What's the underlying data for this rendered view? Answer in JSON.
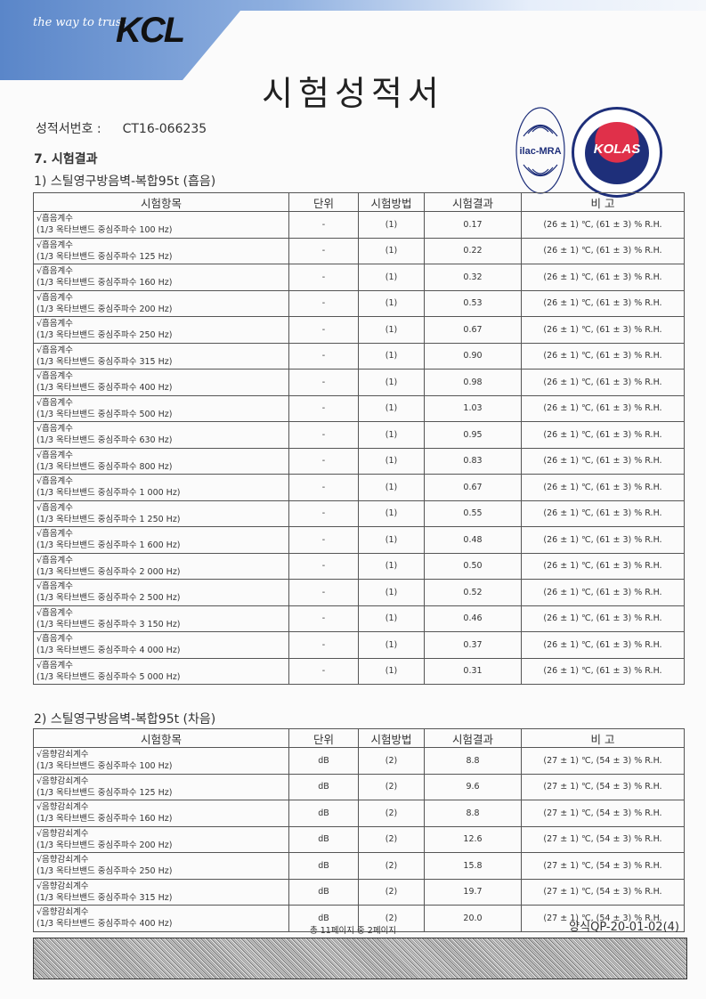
{
  "header": {
    "tagline": "the way to trust",
    "logo": "KCL",
    "title": "시험성적서",
    "accreditation_logos": [
      "ilac-MRA",
      "KOLAS"
    ]
  },
  "report": {
    "label": "성적서번호 :",
    "number": "CT16-066235"
  },
  "section": "7. 시험결과",
  "columns": [
    "시험항목",
    "단위",
    "시험방법",
    "시험결과",
    "비  고"
  ],
  "table1": {
    "title": "1) 스틸영구방음벽-복합95t (흡음)",
    "rows": [
      {
        "item": "√흡음계수",
        "band": "(1/3 옥타브밴드 중심주파수 100 Hz)",
        "unit": "-",
        "method": "(1)",
        "result": "0.17",
        "note": "(26 ± 1) ℃, (61 ± 3) % R.H."
      },
      {
        "item": "√흡음계수",
        "band": "(1/3 옥타브밴드 중심주파수 125 Hz)",
        "unit": "-",
        "method": "(1)",
        "result": "0.22",
        "note": "(26 ± 1) ℃, (61 ± 3) % R.H."
      },
      {
        "item": "√흡음계수",
        "band": "(1/3 옥타브밴드 중심주파수 160 Hz)",
        "unit": "-",
        "method": "(1)",
        "result": "0.32",
        "note": "(26 ± 1) ℃, (61 ± 3) % R.H."
      },
      {
        "item": "√흡음계수",
        "band": "(1/3 옥타브밴드 중심주파수 200 Hz)",
        "unit": "-",
        "method": "(1)",
        "result": "0.53",
        "note": "(26 ± 1) ℃, (61 ± 3) % R.H."
      },
      {
        "item": "√흡음계수",
        "band": "(1/3 옥타브밴드 중심주파수 250 Hz)",
        "unit": "-",
        "method": "(1)",
        "result": "0.67",
        "note": "(26 ± 1) ℃, (61 ± 3) % R.H."
      },
      {
        "item": "√흡음계수",
        "band": "(1/3 옥타브밴드 중심주파수 315 Hz)",
        "unit": "-",
        "method": "(1)",
        "result": "0.90",
        "note": "(26 ± 1) ℃, (61 ± 3) % R.H."
      },
      {
        "item": "√흡음계수",
        "band": "(1/3 옥타브밴드 중심주파수 400 Hz)",
        "unit": "-",
        "method": "(1)",
        "result": "0.98",
        "note": "(26 ± 1) ℃, (61 ± 3) % R.H."
      },
      {
        "item": "√흡음계수",
        "band": "(1/3 옥타브밴드 중심주파수 500 Hz)",
        "unit": "-",
        "method": "(1)",
        "result": "1.03",
        "note": "(26 ± 1) ℃, (61 ± 3) % R.H."
      },
      {
        "item": "√흡음계수",
        "band": "(1/3 옥타브밴드 중심주파수 630 Hz)",
        "unit": "-",
        "method": "(1)",
        "result": "0.95",
        "note": "(26 ± 1) ℃, (61 ± 3) % R.H."
      },
      {
        "item": "√흡음계수",
        "band": "(1/3 옥타브밴드 중심주파수 800 Hz)",
        "unit": "-",
        "method": "(1)",
        "result": "0.83",
        "note": "(26 ± 1) ℃, (61 ± 3) % R.H."
      },
      {
        "item": "√흡음계수",
        "band": "(1/3 옥타브밴드 중심주파수 1 000 Hz)",
        "unit": "-",
        "method": "(1)",
        "result": "0.67",
        "note": "(26 ± 1) ℃, (61 ± 3) % R.H."
      },
      {
        "item": "√흡음계수",
        "band": "(1/3 옥타브밴드 중심주파수 1 250 Hz)",
        "unit": "-",
        "method": "(1)",
        "result": "0.55",
        "note": "(26 ± 1) ℃, (61 ± 3) % R.H."
      },
      {
        "item": "√흡음계수",
        "band": "(1/3 옥타브밴드 중심주파수 1 600 Hz)",
        "unit": "-",
        "method": "(1)",
        "result": "0.48",
        "note": "(26 ± 1) ℃, (61 ± 3) % R.H."
      },
      {
        "item": "√흡음계수",
        "band": "(1/3 옥타브밴드 중심주파수 2 000 Hz)",
        "unit": "-",
        "method": "(1)",
        "result": "0.50",
        "note": "(26 ± 1) ℃, (61 ± 3) % R.H."
      },
      {
        "item": "√흡음계수",
        "band": "(1/3 옥타브밴드 중심주파수 2 500 Hz)",
        "unit": "-",
        "method": "(1)",
        "result": "0.52",
        "note": "(26 ± 1) ℃, (61 ± 3) % R.H."
      },
      {
        "item": "√흡음계수",
        "band": "(1/3 옥타브밴드 중심주파수 3 150 Hz)",
        "unit": "-",
        "method": "(1)",
        "result": "0.46",
        "note": "(26 ± 1) ℃, (61 ± 3) % R.H."
      },
      {
        "item": "√흡음계수",
        "band": "(1/3 옥타브밴드 중심주파수 4 000 Hz)",
        "unit": "-",
        "method": "(1)",
        "result": "0.37",
        "note": "(26 ± 1) ℃, (61 ± 3) % R.H."
      },
      {
        "item": "√흡음계수",
        "band": "(1/3 옥타브밴드 중심주파수 5 000 Hz)",
        "unit": "-",
        "method": "(1)",
        "result": "0.31",
        "note": "(26 ± 1) ℃, (61 ± 3) % R.H."
      }
    ]
  },
  "table2": {
    "title": "2) 스틸영구방음벽-복합95t (차음)",
    "rows": [
      {
        "item": "√음향감쇠계수",
        "band": "(1/3 옥타브밴드 중심주파수 100 Hz)",
        "unit": "dB",
        "method": "(2)",
        "result": "8.8",
        "note": "(27 ± 1) ℃, (54 ± 3) % R.H."
      },
      {
        "item": "√음향감쇠계수",
        "band": "(1/3 옥타브밴드 중심주파수 125 Hz)",
        "unit": "dB",
        "method": "(2)",
        "result": "9.6",
        "note": "(27 ± 1) ℃, (54 ± 3) % R.H."
      },
      {
        "item": "√음향감쇠계수",
        "band": "(1/3 옥타브밴드 중심주파수 160 Hz)",
        "unit": "dB",
        "method": "(2)",
        "result": "8.8",
        "note": "(27 ± 1) ℃, (54 ± 3) % R.H."
      },
      {
        "item": "√음향감쇠계수",
        "band": "(1/3 옥타브밴드 중심주파수 200 Hz)",
        "unit": "dB",
        "method": "(2)",
        "result": "12.6",
        "note": "(27 ± 1) ℃, (54 ± 3) % R.H."
      },
      {
        "item": "√음향감쇠계수",
        "band": "(1/3 옥타브밴드 중심주파수 250 Hz)",
        "unit": "dB",
        "method": "(2)",
        "result": "15.8",
        "note": "(27 ± 1) ℃, (54 ± 3) % R.H."
      },
      {
        "item": "√음향감쇠계수",
        "band": "(1/3 옥타브밴드 중심주파수 315 Hz)",
        "unit": "dB",
        "method": "(2)",
        "result": "19.7",
        "note": "(27 ± 1) ℃, (54 ± 3) % R.H."
      },
      {
        "item": "√음향감쇠계수",
        "band": "(1/3 옥타브밴드 중심주파수 400 Hz)",
        "unit": "dB",
        "method": "(2)",
        "result": "20.0",
        "note": "(27 ± 1) ℃, (54 ± 3) % R.H."
      }
    ]
  },
  "footer": {
    "pages": "총 11페이지 중 2페이지",
    "form_no": "양식QP-20-01-02(4)"
  }
}
